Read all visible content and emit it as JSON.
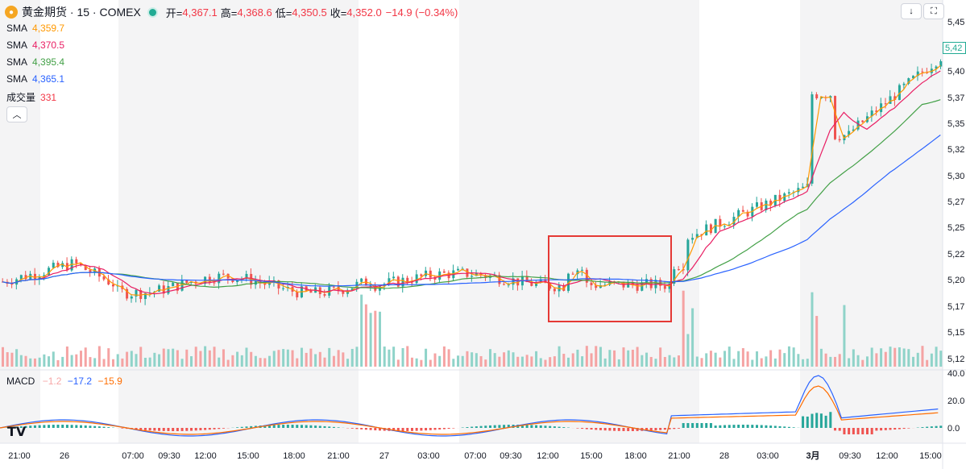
{
  "header": {
    "symbol_title": "黄金期货 · 15 · COMEX",
    "open_label": "开=",
    "open_value": "4,367.1",
    "high_label": "高=",
    "high_value": "4,368.6",
    "low_label": "低=",
    "low_value": "4,350.5",
    "close_label": "收=",
    "close_value": "4,352.0",
    "change_value": "−14.9 (−0.34%)"
  },
  "indicators": [
    {
      "name": "SMA",
      "value": "4,359.7",
      "color": "#ff9800"
    },
    {
      "name": "SMA",
      "value": "4,370.5",
      "color": "#e91e63"
    },
    {
      "name": "SMA",
      "value": "4,395.4",
      "color": "#43a047"
    },
    {
      "name": "SMA",
      "value": "4,365.1",
      "color": "#2962ff"
    },
    {
      "name": "成交量",
      "value": "331",
      "color": "#f23645"
    }
  ],
  "macd_legend": {
    "name": "MACD",
    "hist": "−1.2",
    "macd": "−17.2",
    "signal": "−15.9"
  },
  "toolbar": {
    "collapse_icon": "chevron-up-icon",
    "download_icon": "download-icon",
    "fullscreen_icon": "fullscreen-icon"
  },
  "last_price_tag": "5,42",
  "colors": {
    "up": "#26a69a",
    "down": "#ef5350",
    "sma_fast": "#ff9800",
    "sma_mid": "#e91e63",
    "sma_slow": "#43a047",
    "sma_long": "#2962ff",
    "highlight_box": "#e53935",
    "macd_line": "#2962ff",
    "signal_line": "#ff6d00"
  },
  "chart_data": {
    "type": "candlestick",
    "price_axis_labels": [
      "5,45",
      "5,40",
      "5,37",
      "5,35",
      "5,32",
      "5,30",
      "5,27",
      "5,25",
      "5,22",
      "5,20",
      "5,17",
      "5,15",
      "5,12"
    ],
    "macd_axis_labels": [
      "40.0",
      "20.0",
      "0.0"
    ],
    "time_axis_labels": [
      "21:00",
      "26",
      "07:00",
      "09:30",
      "12:00",
      "15:00",
      "18:00",
      "21:00",
      "27",
      "03:00",
      "07:00",
      "09:30",
      "12:00",
      "15:00",
      "18:00",
      "21:00",
      "28",
      "03:00",
      "3月",
      "09:30",
      "12:00",
      "15:00"
    ],
    "session_shading": "alternating grey sessions",
    "highlight": "red box around sideways consolidation before breakout",
    "trend": "flat around 5,20 then breakout to ~5,42"
  }
}
